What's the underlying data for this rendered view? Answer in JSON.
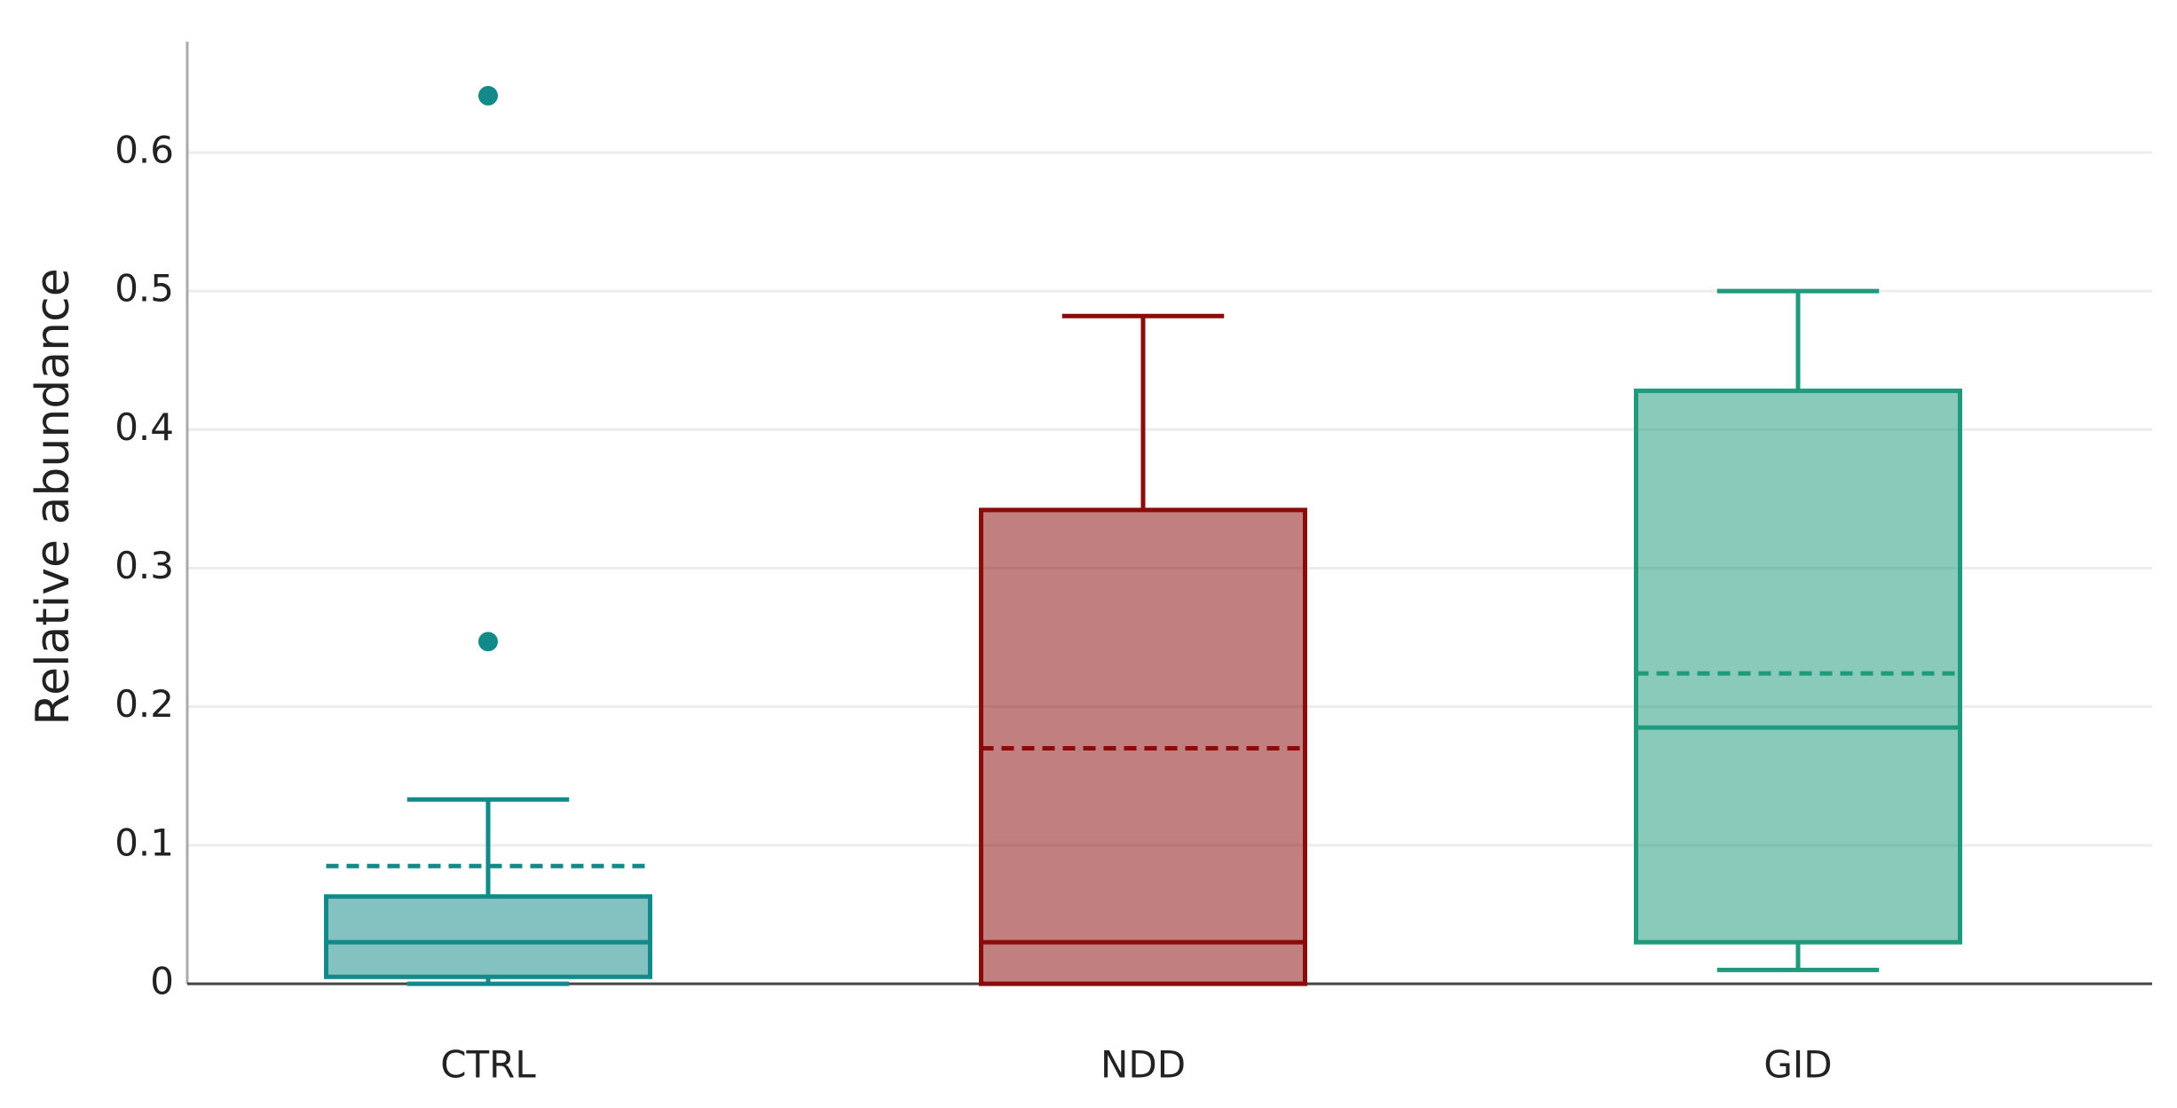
{
  "chart_data": {
    "type": "box",
    "y_label": "Relative abundance",
    "categories": [
      "CTRL",
      "NDD",
      "GID"
    ],
    "boxes": [
      {
        "color": "#138a8a",
        "whislo": 0,
        "q1": 0.005,
        "med": 0.03,
        "q3": 0.063,
        "whishi": 0.133,
        "mean": 0.085,
        "fliers": [
          0.247,
          0.641
        ]
      },
      {
        "color": "#8b0a0a",
        "whislo": 0,
        "q1": 0,
        "med": 0.03,
        "q3": 0.342,
        "whishi": 0.482,
        "mean": 0.17,
        "fliers": []
      },
      {
        "color": "#1f9a7c",
        "whislo": 0.01,
        "q1": 0.03,
        "med": 0.185,
        "q3": 0.428,
        "whishi": 0.5,
        "mean": 0.224,
        "fliers": []
      }
    ],
    "ylim": [
      0,
      0.68
    ],
    "yticks": [
      0,
      0.1,
      0.2,
      0.3,
      0.4,
      0.5,
      0.6
    ],
    "grid": true
  }
}
